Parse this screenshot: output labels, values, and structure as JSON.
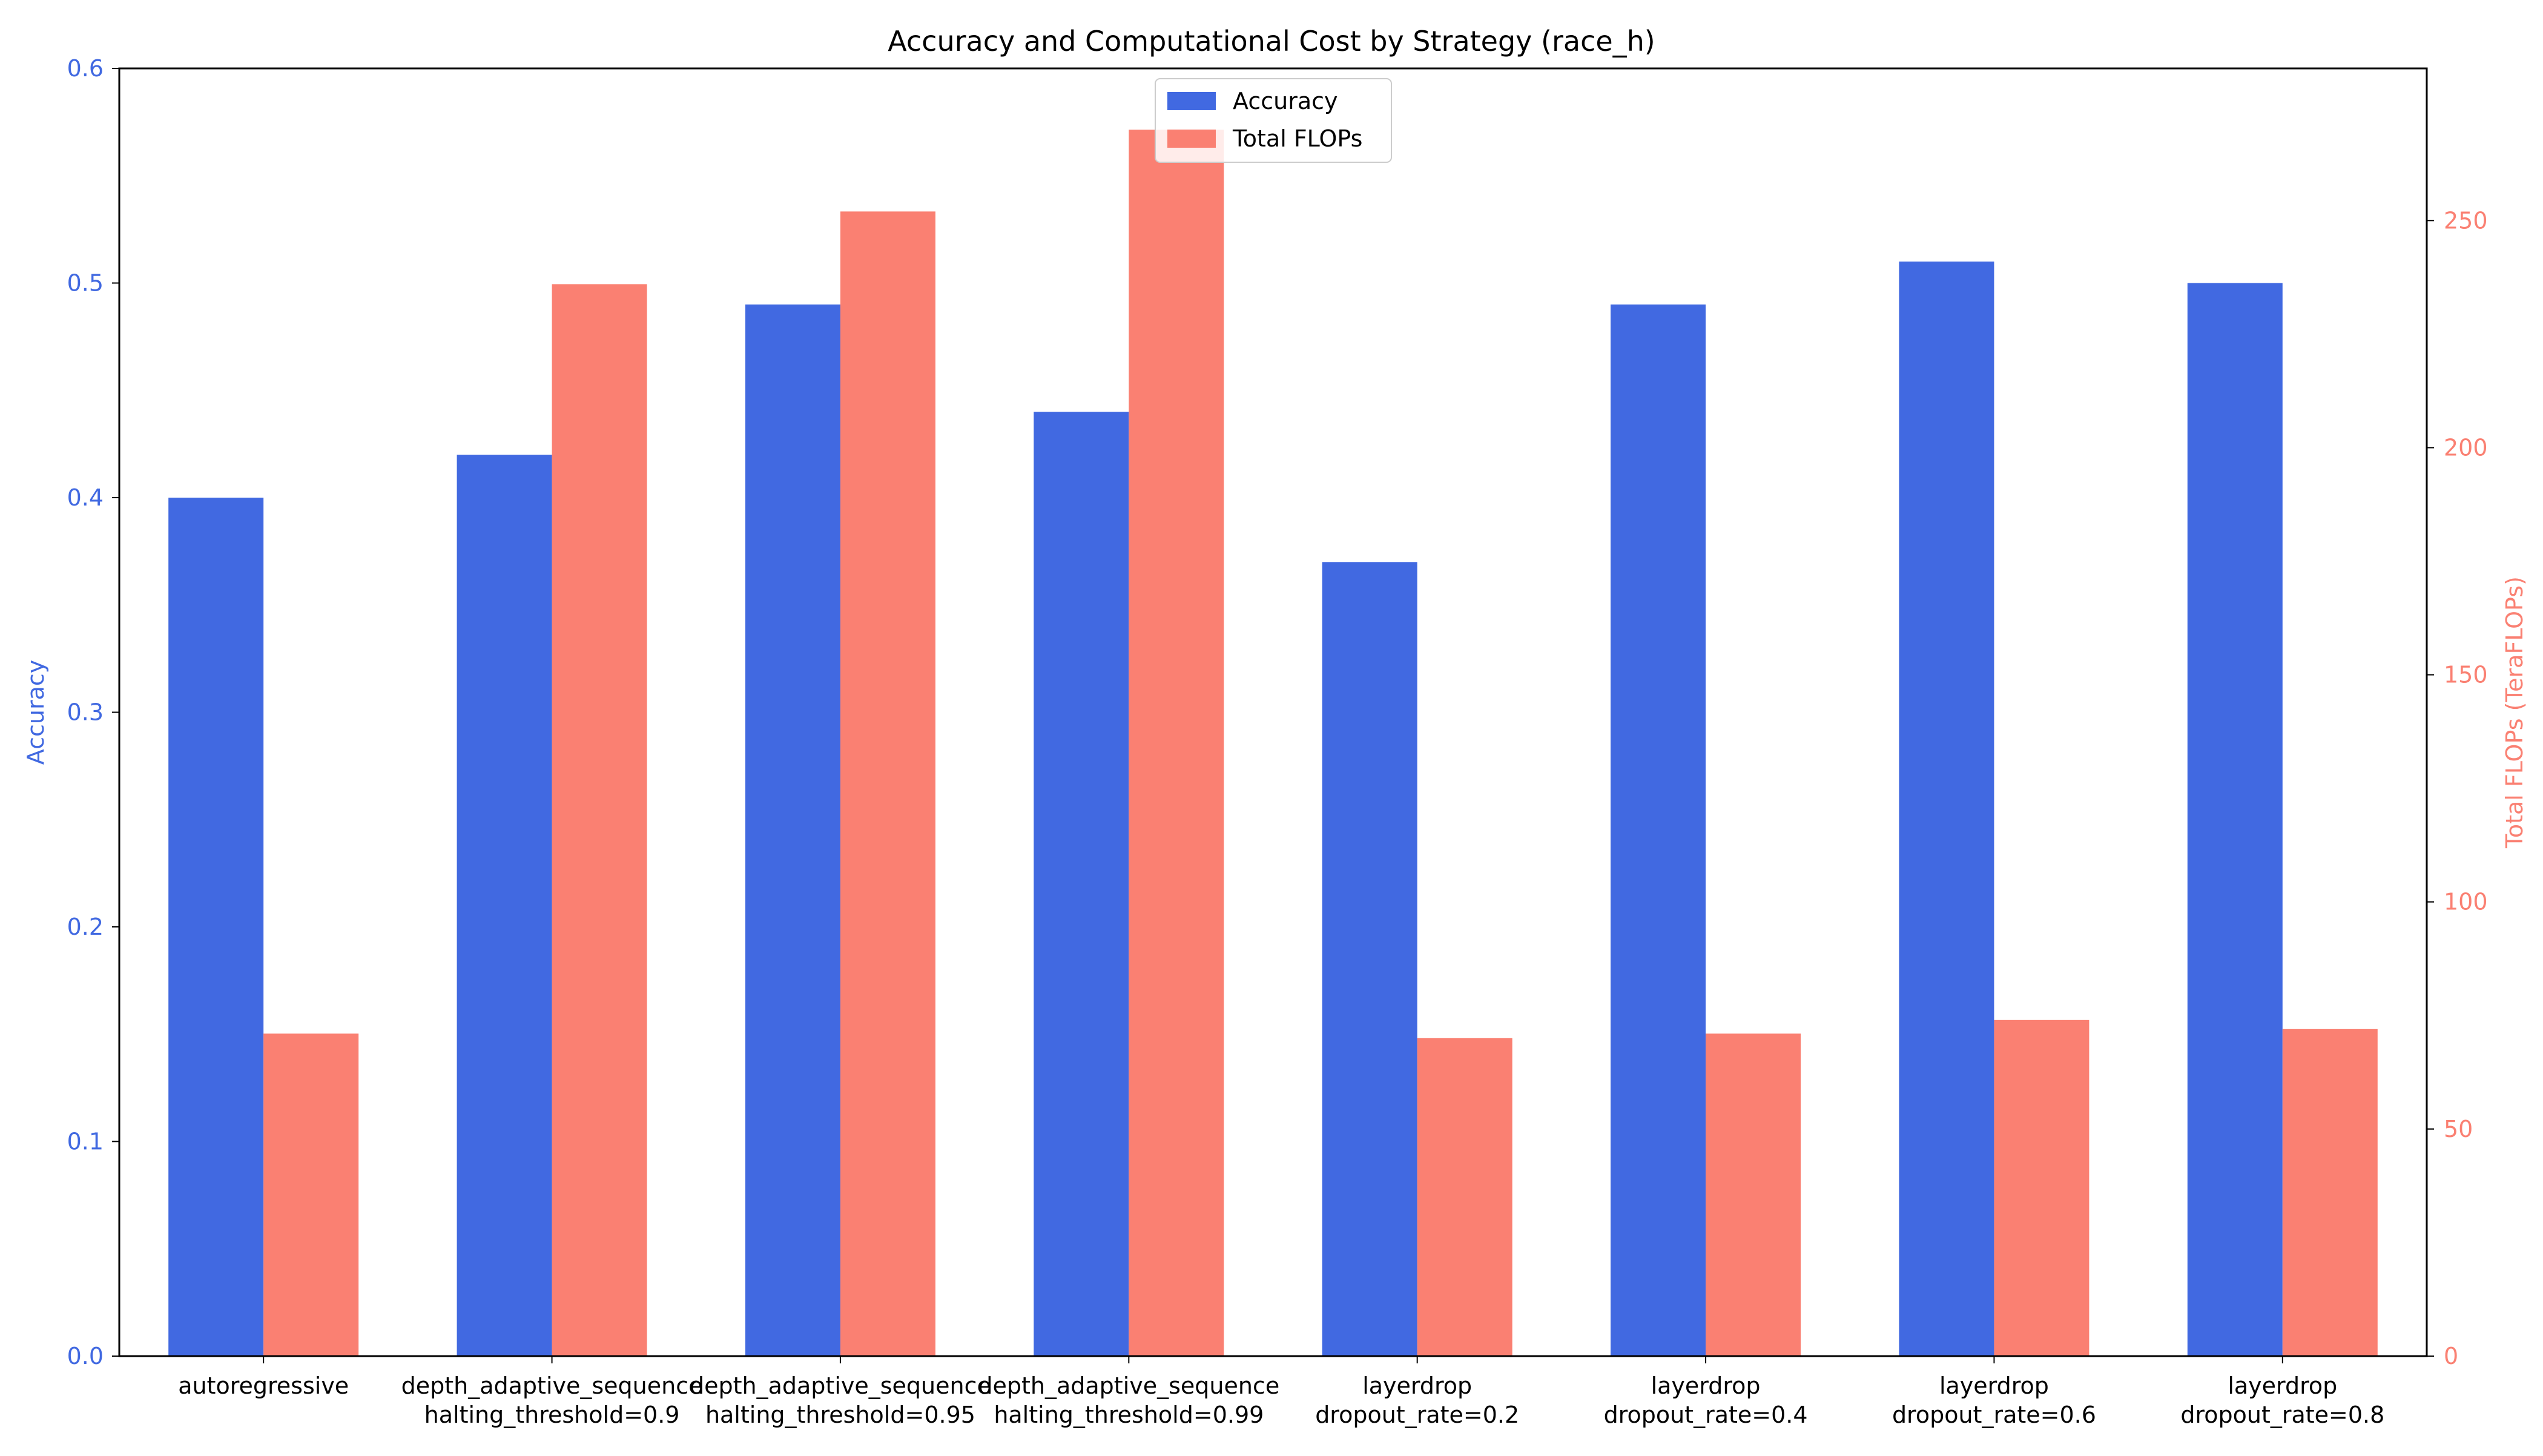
{
  "chart_data": {
    "type": "bar",
    "title": "Accuracy and Computational Cost by Strategy (race_h)",
    "categories": [
      [
        "autoregressive"
      ],
      [
        "depth_adaptive_sequence",
        "halting_threshold=0.9"
      ],
      [
        "depth_adaptive_sequence",
        "halting_threshold=0.95"
      ],
      [
        "depth_adaptive_sequence",
        "halting_threshold=0.99"
      ],
      [
        "layerdrop",
        "dropout_rate=0.2"
      ],
      [
        "layerdrop",
        "dropout_rate=0.4"
      ],
      [
        "layerdrop",
        "dropout_rate=0.6"
      ],
      [
        "layerdrop",
        "dropout_rate=0.8"
      ]
    ],
    "series": [
      {
        "name": "Accuracy",
        "axis": "left",
        "color": "#4169E1",
        "values": [
          0.4,
          0.42,
          0.49,
          0.44,
          0.37,
          0.49,
          0.51,
          0.5
        ]
      },
      {
        "name": "Total FLOPs",
        "axis": "right",
        "color": "#FA8072",
        "values": [
          71,
          236,
          252,
          270,
          70,
          71,
          74,
          72
        ]
      }
    ],
    "y_left": {
      "label": "Accuracy",
      "lim": [
        0,
        0.6
      ],
      "ticks": [
        "0.0",
        "0.1",
        "0.2",
        "0.3",
        "0.4",
        "0.5",
        "0.6"
      ],
      "color": "#4169E1"
    },
    "y_right": {
      "label": "Total FLOPs (TeraFLOPs)",
      "lim": [
        0,
        283.5
      ],
      "ticks": [
        "0",
        "50",
        "100",
        "150",
        "200",
        "250"
      ],
      "color": "#FA8072"
    },
    "grid": false,
    "legend": {
      "position": "top-center",
      "entries": [
        "Accuracy",
        "Total FLOPs"
      ]
    }
  }
}
